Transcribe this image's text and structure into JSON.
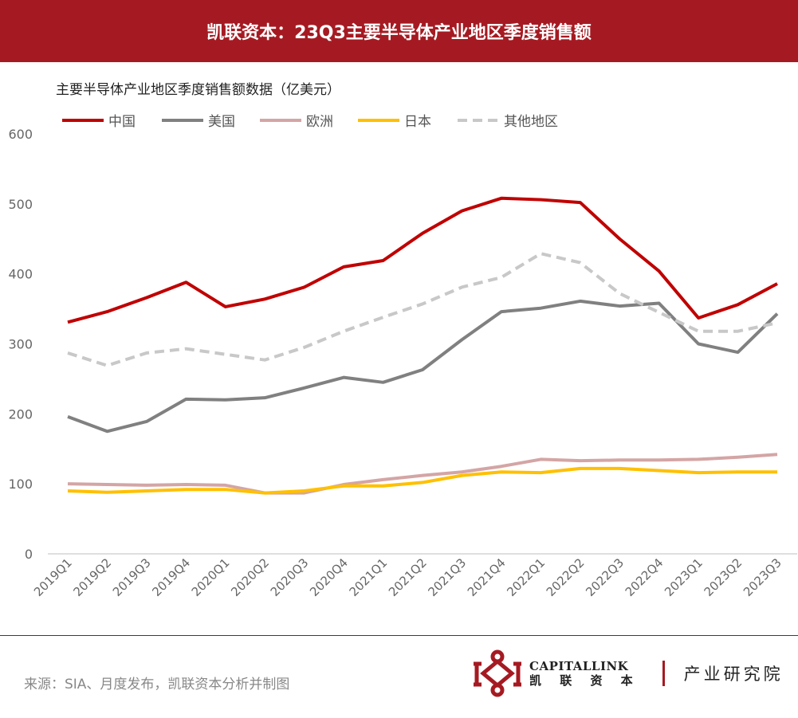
{
  "header": {
    "title": "凯联资本：23Q3主要半导体产业地区季度销售额"
  },
  "footer": {
    "source": "来源：SIA、月度发布，凯联资本分析并制图",
    "logo_en": "CAPITALLINK",
    "logo_cn": "凯 联 资 本",
    "institute": "产业研究院"
  },
  "chart_data": {
    "type": "line",
    "title": "主要半导体产业地区季度销售额数据（亿美元）",
    "xlabel": "",
    "ylabel": "",
    "ylim": [
      0,
      600
    ],
    "yticks": [
      0,
      100,
      200,
      300,
      400,
      500,
      600
    ],
    "legend_position": "top-left",
    "grid": false,
    "categories": [
      "2019Q1",
      "2019Q2",
      "2019Q3",
      "2019Q4",
      "2020Q1",
      "2020Q2",
      "2020Q3",
      "2020Q4",
      "2021Q1",
      "2021Q2",
      "2021Q3",
      "2021Q4",
      "2022Q1",
      "2022Q2",
      "2022Q3",
      "2022Q4",
      "2023Q1",
      "2023Q2",
      "2023Q3"
    ],
    "series": [
      {
        "name": "中国",
        "color": "#c00000",
        "dashed": false,
        "values": [
          331,
          346,
          366,
          388,
          353,
          364,
          381,
          410,
          419,
          458,
          490,
          508,
          506,
          502,
          450,
          404,
          337,
          356,
          386
        ]
      },
      {
        "name": "美国",
        "color": "#808080",
        "dashed": false,
        "values": [
          196,
          175,
          189,
          221,
          220,
          223,
          237,
          252,
          245,
          263,
          306,
          346,
          351,
          361,
          354,
          358,
          300,
          288,
          343
        ]
      },
      {
        "name": "欧洲",
        "color": "#d4a5a5",
        "dashed": false,
        "values": [
          100,
          99,
          98,
          99,
          98,
          87,
          87,
          99,
          106,
          112,
          117,
          125,
          135,
          133,
          134,
          134,
          135,
          138,
          142
        ]
      },
      {
        "name": "日本",
        "color": "#ffc000",
        "dashed": false,
        "values": [
          90,
          88,
          90,
          92,
          92,
          87,
          90,
          97,
          97,
          102,
          112,
          117,
          116,
          122,
          122,
          119,
          116,
          117,
          117
        ]
      },
      {
        "name": "其他地区",
        "color": "#c8c8c8",
        "dashed": true,
        "values": [
          287,
          269,
          287,
          293,
          285,
          277,
          295,
          318,
          338,
          357,
          381,
          395,
          429,
          416,
          372,
          345,
          318,
          318,
          330
        ]
      }
    ]
  }
}
